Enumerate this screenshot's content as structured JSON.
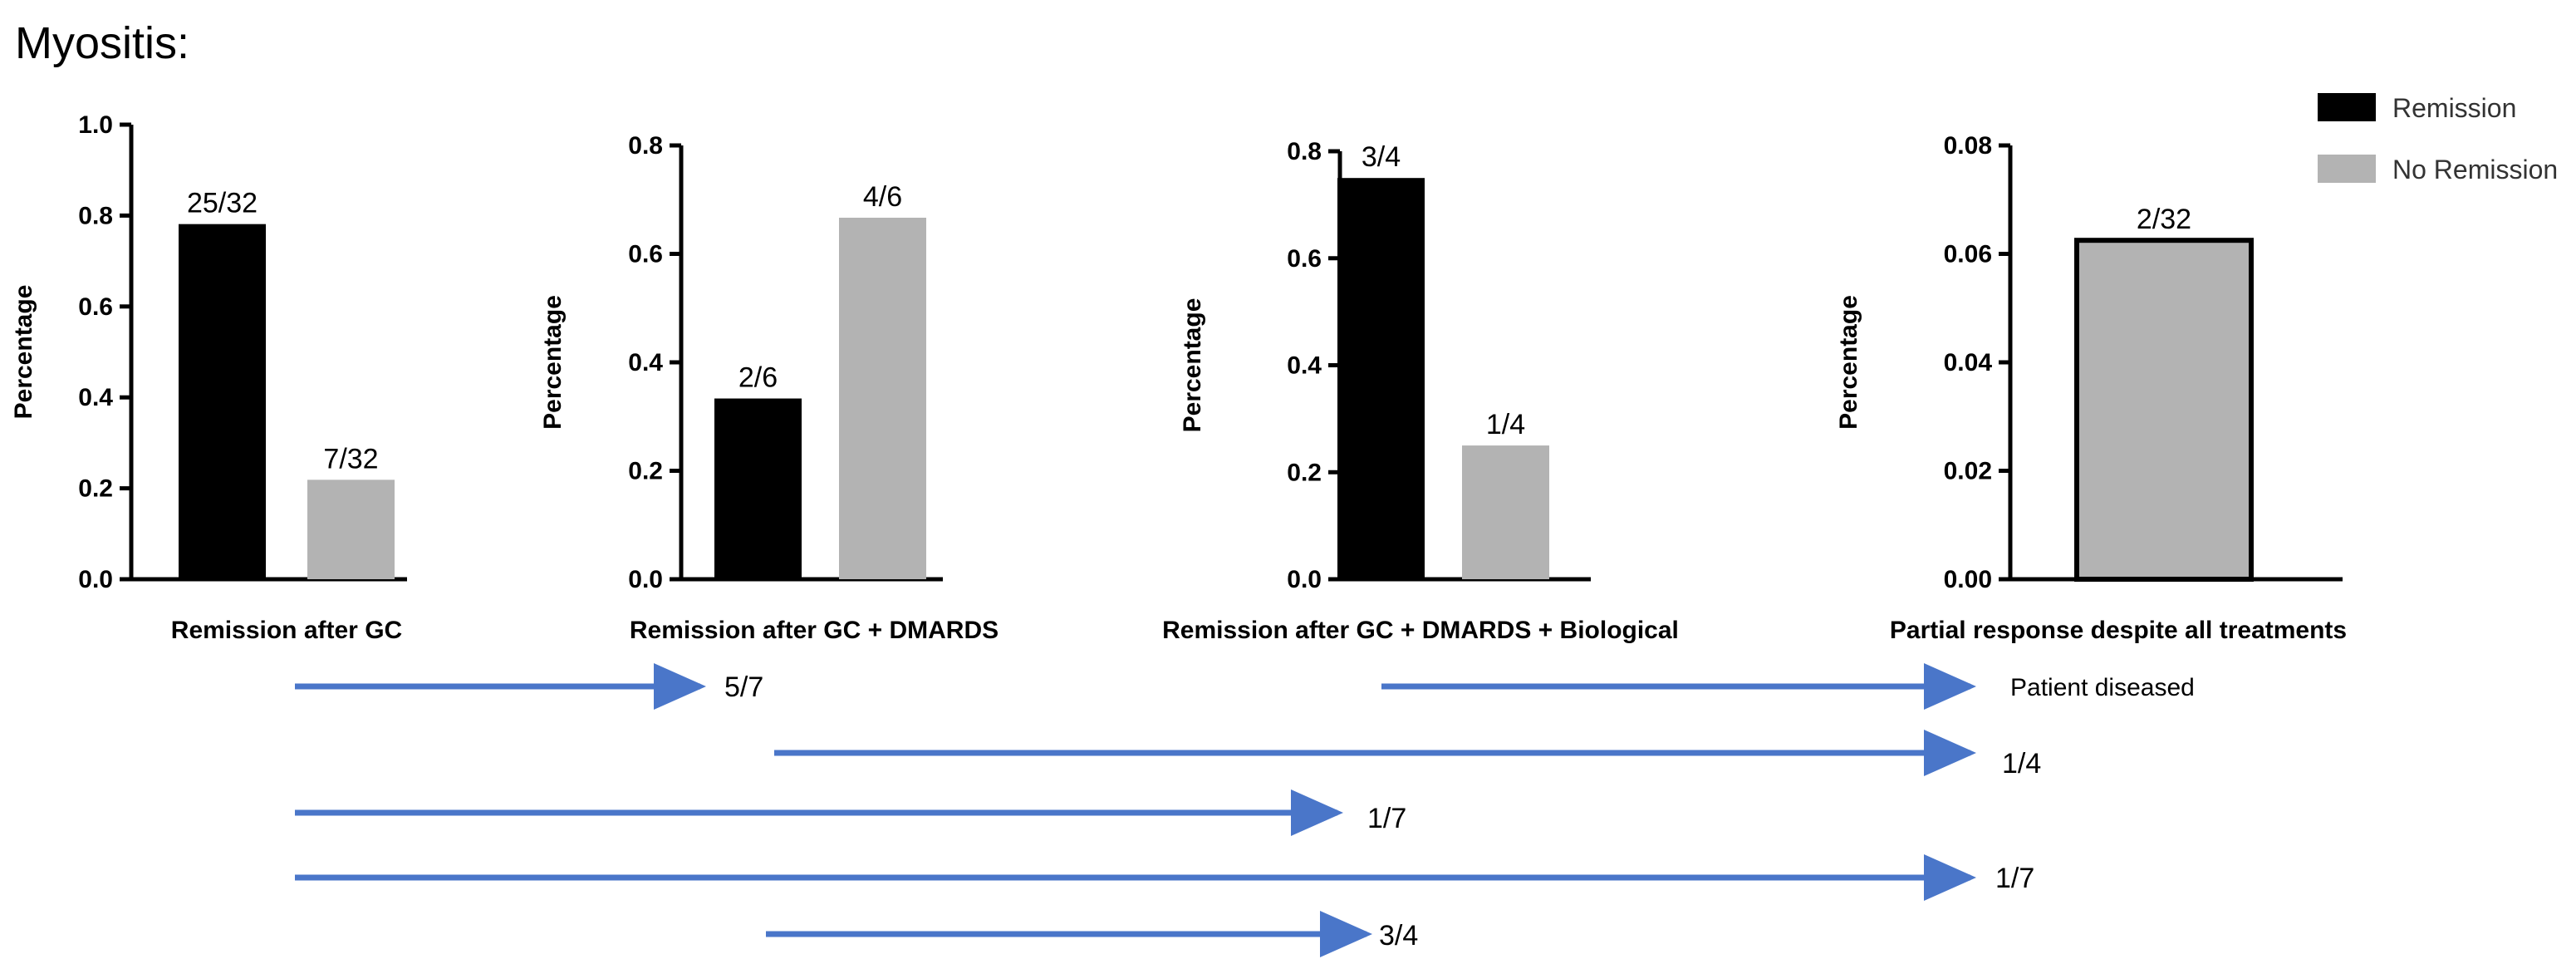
{
  "page_title": "Myositis:",
  "colors": {
    "remission": "#000000",
    "no_remission": "#b3b3b3",
    "arrow": "#4a76c9",
    "axis": "#000000"
  },
  "legend": {
    "items": [
      {
        "label": "Remission",
        "color": "#000000"
      },
      {
        "label": "No Remission",
        "color": "#b3b3b3"
      }
    ]
  },
  "chart_data": [
    {
      "type": "bar",
      "title": "",
      "xlabel": "Remission after GC",
      "ylabel": "Percentage",
      "ylim": [
        0,
        1.0
      ],
      "yticks": [
        "0.0",
        "0.2",
        "0.4",
        "0.6",
        "0.8",
        "1.0"
      ],
      "bars": [
        {
          "series": "Remission",
          "value": 0.78125,
          "label": "25/32"
        },
        {
          "series": "No Remission",
          "value": 0.21875,
          "label": "7/32"
        }
      ]
    },
    {
      "type": "bar",
      "title": "",
      "xlabel": "Remission after GC + DMARDS",
      "ylabel": "Percentage",
      "ylim": [
        0,
        0.8
      ],
      "yticks": [
        "0.0",
        "0.2",
        "0.4",
        "0.6",
        "0.8"
      ],
      "bars": [
        {
          "series": "Remission",
          "value": 0.3333,
          "label": "2/6"
        },
        {
          "series": "No Remission",
          "value": 0.6667,
          "label": "4/6"
        }
      ]
    },
    {
      "type": "bar",
      "title": "",
      "xlabel": "Remission after GC + DMARDS + Biological",
      "ylabel": "Percentage",
      "ylim": [
        0,
        0.8
      ],
      "yticks": [
        "0.0",
        "0.2",
        "0.4",
        "0.6",
        "0.8"
      ],
      "bars": [
        {
          "series": "Remission",
          "value": 0.75,
          "label": "3/4"
        },
        {
          "series": "No Remission",
          "value": 0.25,
          "label": "1/4"
        }
      ]
    },
    {
      "type": "bar",
      "title": "",
      "xlabel": "Partial response despite all treatments",
      "ylabel": "Percentage",
      "ylim": [
        0,
        0.08
      ],
      "yticks": [
        "0.00",
        "0.02",
        "0.04",
        "0.06",
        "0.08"
      ],
      "bars": [
        {
          "series": "No Remission",
          "value": 0.0625,
          "label": "2/32",
          "outlined": true
        }
      ]
    }
  ],
  "arrows": [
    {
      "from": "Remission after GC",
      "to": "Remission after GC + DMARDS",
      "label": "5/7"
    },
    {
      "from": "Remission after GC + DMARDS + Biological",
      "to": "Partial response despite all treatments",
      "label": "Patient diseased"
    },
    {
      "from": "Remission after GC + DMARDS",
      "to": "Partial response despite all treatments",
      "label": "1/4"
    },
    {
      "from": "Remission after GC",
      "to": "Remission after GC + DMARDS + Biological",
      "label": "1/7"
    },
    {
      "from": "Remission after GC",
      "to": "Partial response despite all treatments",
      "label": "1/7"
    },
    {
      "from": "Remission after GC + DMARDS",
      "to": "Remission after GC + DMARDS + Biological",
      "label": "3/4"
    }
  ]
}
